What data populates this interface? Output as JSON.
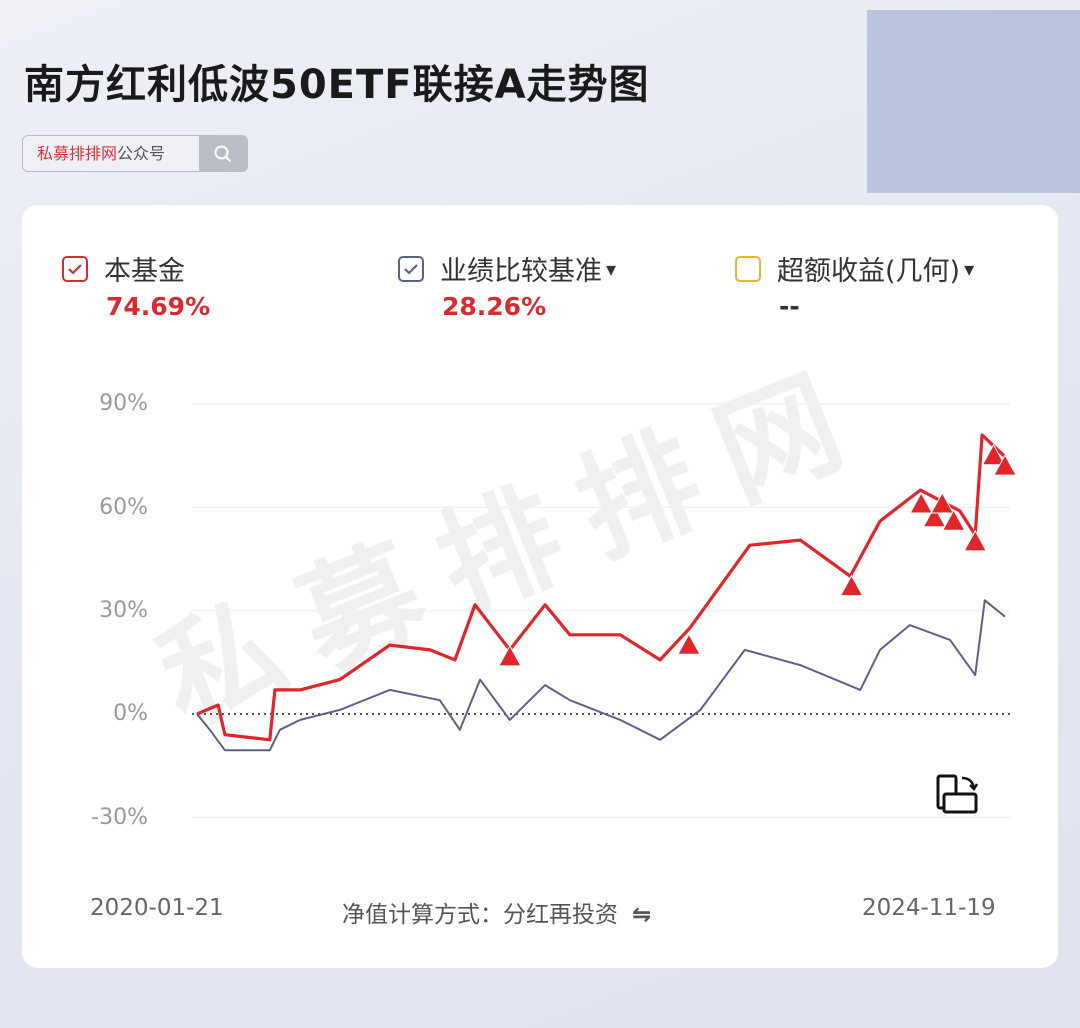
{
  "header": {
    "title": "南方红利低波50ETF联接A走势图"
  },
  "search": {
    "brand": "私募排排网",
    "suffix": "公众号",
    "icon": "search-icon"
  },
  "legend": [
    {
      "label": "本基金",
      "value": "74.69%",
      "checked": true,
      "color": "#d92b2f",
      "value_color": "#d92b2f"
    },
    {
      "label": "业绩比较基准",
      "dropdown": "▾",
      "value": "28.26%",
      "checked": true,
      "color": "#5d6188",
      "value_color": "#d92b2f"
    },
    {
      "label": "超额收益(几何)",
      "dropdown": "▾",
      "value": "--",
      "checked": false,
      "color": "#e8b431",
      "value_color": "#333333"
    }
  ],
  "footer": {
    "start_date": "2020-01-21",
    "method": "净值计算方式：分红再投资",
    "swap_icon": "⇋",
    "end_date": "2024-11-19"
  },
  "watermark": "私募排排网",
  "chart_data": {
    "type": "line",
    "xlim": [
      "2020-01-21",
      "2024-11-19"
    ],
    "ylim": [
      -30,
      90
    ],
    "yticks": [
      90,
      60,
      30,
      0,
      -30
    ],
    "ytick_labels": [
      "90%",
      "60%",
      "30%",
      "0%",
      "-30%"
    ],
    "grid": true,
    "zero_line": "dotted",
    "series": [
      {
        "name": "本基金",
        "color": "#e0262b",
        "points": [
          [
            "2020-01-21",
            0
          ],
          [
            "2020-03-07",
            2.6
          ],
          [
            "2020-03-22",
            -6
          ],
          [
            "2020-06-28",
            -7.5
          ],
          [
            "2020-07-09",
            7
          ],
          [
            "2020-09-02",
            7
          ],
          [
            "2020-11-28",
            10
          ],
          [
            "2021-03-17",
            20
          ],
          [
            "2021-06-13",
            18.6
          ],
          [
            "2021-08-06",
            15.7
          ],
          [
            "2021-09-19",
            31.7
          ],
          [
            "2021-12-04",
            18.6
          ],
          [
            "2022-02-19",
            31.7
          ],
          [
            "2022-04-14",
            23
          ],
          [
            "2022-08-02",
            23
          ],
          [
            "2022-10-28",
            15.7
          ],
          [
            "2023-01-01",
            25
          ],
          [
            "2023-05-12",
            49
          ],
          [
            "2023-08-30",
            50.5
          ],
          [
            "2023-12-17",
            40
          ],
          [
            "2024-02-20",
            56
          ],
          [
            "2024-05-18",
            65
          ],
          [
            "2024-08-12",
            59
          ],
          [
            "2024-09-15",
            52
          ],
          [
            "2024-09-30",
            81
          ],
          [
            "2024-11-19",
            74.69
          ]
        ]
      },
      {
        "name": "业绩比较基准",
        "color": "#5d6188",
        "points": [
          [
            "2020-01-21",
            0
          ],
          [
            "2020-02-18",
            -4.6
          ],
          [
            "2020-03-22",
            -10.5
          ],
          [
            "2020-06-28",
            -10.5
          ],
          [
            "2020-07-20",
            -4.6
          ],
          [
            "2020-09-02",
            -1.7
          ],
          [
            "2020-11-28",
            1.2
          ],
          [
            "2021-03-17",
            7
          ],
          [
            "2021-07-04",
            4
          ],
          [
            "2021-08-17",
            -4.6
          ],
          [
            "2021-09-30",
            10
          ],
          [
            "2021-12-04",
            -1.7
          ],
          [
            "2022-02-19",
            8.4
          ],
          [
            "2022-04-14",
            4
          ],
          [
            "2022-08-02",
            -1.7
          ],
          [
            "2022-10-28",
            -7.5
          ],
          [
            "2023-01-24",
            1.2
          ],
          [
            "2023-05-01",
            18.6
          ],
          [
            "2023-08-30",
            14.2
          ],
          [
            "2024-01-08",
            7
          ],
          [
            "2024-02-20",
            18.6
          ],
          [
            "2024-04-25",
            25.8
          ],
          [
            "2024-07-22",
            21.5
          ],
          [
            "2024-09-15",
            11.3
          ],
          [
            "2024-10-06",
            33
          ],
          [
            "2024-11-19",
            28.26
          ]
        ]
      }
    ],
    "markers": {
      "shape": "triangle",
      "color": "#e0262b",
      "points": [
        [
          "2021-12-04",
          18.6
        ],
        [
          "2022-12-30",
          22
        ],
        [
          "2023-12-20",
          39
        ],
        [
          "2024-05-20",
          63
        ],
        [
          "2024-06-18",
          59
        ],
        [
          "2024-07-05",
          63
        ],
        [
          "2024-07-30",
          58
        ],
        [
          "2024-09-15",
          52
        ],
        [
          "2024-10-25",
          77
        ],
        [
          "2024-11-19",
          74
        ]
      ]
    }
  }
}
